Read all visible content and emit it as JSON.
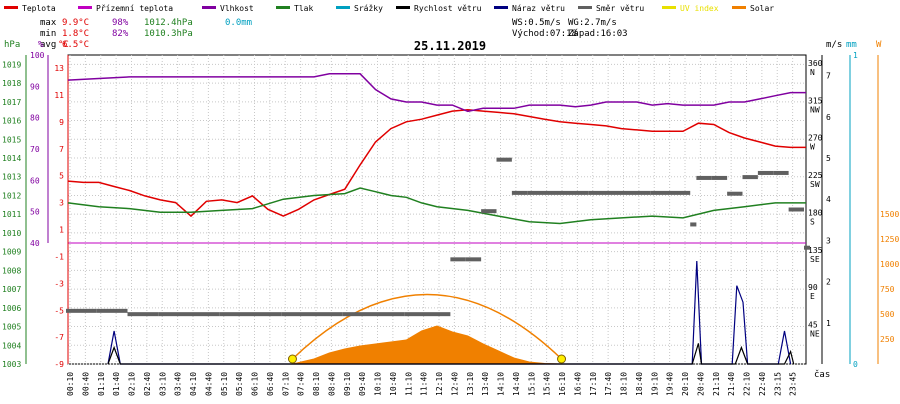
{
  "legend": [
    {
      "label": "Teplota",
      "color": "#e00000"
    },
    {
      "label": "Přízemní teplota",
      "color": "#c000c0"
    },
    {
      "label": "Vlhkost",
      "color": "#8000a0"
    },
    {
      "label": "Tlak",
      "color": "#208020"
    },
    {
      "label": "Srážky",
      "color": "#00a0c0"
    },
    {
      "label": "Rychlost větru",
      "color": "#000000"
    },
    {
      "label": "Náraz větru",
      "color": "#000080"
    },
    {
      "label": "Směr větru",
      "color": "#606060"
    },
    {
      "label": "UV index",
      "color": "#e8e000"
    },
    {
      "label": "Solar",
      "color": "#f08000"
    }
  ],
  "stats": {
    "max_label": "max",
    "max_temp": "9.9°C",
    "max_hum": "98%",
    "max_press": "1012.4hPa",
    "max_rain": "0.0mm",
    "min_label": "min",
    "min_temp": "1.8°C",
    "min_hum": "82%",
    "min_press": "1010.3hPa",
    "avg_label": "avg",
    "avg_temp": "6.5°C"
  },
  "wind": {
    "ws": "WS:0.5m/s",
    "wg": "WG:2.7m/s",
    "sunrise": "Východ:07:18",
    "sunset": "Západ:16:03"
  },
  "title": "25.11.2019",
  "axis_units": {
    "hpa": "hPa",
    "pct": "%",
    "degc": "°C",
    "ms": "m/s",
    "mm": "mm",
    "w": "W"
  },
  "time_label": "čas",
  "chart_data": {
    "type": "line",
    "title": "25.11.2019",
    "x_ticks": [
      "00:10",
      "00:40",
      "01:10",
      "01:40",
      "02:10",
      "02:40",
      "03:10",
      "03:40",
      "04:10",
      "04:40",
      "05:10",
      "05:40",
      "06:10",
      "06:40",
      "07:10",
      "07:40",
      "08:10",
      "08:40",
      "09:10",
      "09:40",
      "10:10",
      "10:40",
      "11:10",
      "11:40",
      "12:10",
      "12:40",
      "13:10",
      "13:40",
      "14:10",
      "14:40",
      "15:10",
      "15:40",
      "16:10",
      "16:40",
      "17:10",
      "17:40",
      "18:10",
      "18:40",
      "19:10",
      "19:40",
      "20:10",
      "20:40",
      "21:10",
      "21:40",
      "22:10",
      "22:40",
      "23:15",
      "23:45"
    ],
    "hpa_ticks": [
      "1019",
      "1018",
      "1017",
      "1016",
      "1015",
      "1014",
      "1013",
      "1012",
      "1011",
      "1010",
      "1009",
      "1008",
      "1007",
      "1006",
      "1005",
      "1004",
      "1003"
    ],
    "pct_ticks": [
      "100",
      "90",
      "80",
      "70",
      "60",
      "50",
      "40"
    ],
    "degc_ticks": [
      "13",
      "11",
      "9",
      "7",
      "5",
      "3",
      "1",
      "-1",
      "-3",
      "-5",
      "-7",
      "-9"
    ],
    "dir_ticks": [
      "360 N",
      "315 NW",
      "270 W",
      "225 SW",
      "180 S",
      "135 SE",
      "90 E",
      "45 NE"
    ],
    "ms_ticks": [
      "7",
      "6",
      "5",
      "4",
      "3",
      "2",
      "1"
    ],
    "mm_ticks": [
      "1",
      "0"
    ],
    "w_ticks": [
      "1500",
      "1250",
      "1000",
      "750",
      "500",
      "250"
    ],
    "x_hours": [
      0,
      24
    ],
    "series": [
      {
        "name": "Teplota",
        "unit": "°C",
        "color": "#e00000",
        "points": [
          [
            0,
            4.6
          ],
          [
            0.5,
            4.5
          ],
          [
            1,
            4.5
          ],
          [
            1.5,
            4.2
          ],
          [
            2,
            3.9
          ],
          [
            2.5,
            3.5
          ],
          [
            3,
            3.2
          ],
          [
            3.5,
            3.0
          ],
          [
            4,
            2.0
          ],
          [
            4.5,
            3.1
          ],
          [
            5,
            3.2
          ],
          [
            5.5,
            3.0
          ],
          [
            6,
            3.5
          ],
          [
            6.5,
            2.5
          ],
          [
            7,
            2.0
          ],
          [
            7.5,
            2.5
          ],
          [
            8,
            3.2
          ],
          [
            8.5,
            3.6
          ],
          [
            9,
            4.0
          ],
          [
            9.5,
            5.8
          ],
          [
            10,
            7.5
          ],
          [
            10.5,
            8.5
          ],
          [
            11,
            9.0
          ],
          [
            11.5,
            9.2
          ],
          [
            12,
            9.5
          ],
          [
            12.5,
            9.8
          ],
          [
            13,
            9.9
          ],
          [
            13.5,
            9.8
          ],
          [
            14,
            9.7
          ],
          [
            14.5,
            9.6
          ],
          [
            15,
            9.4
          ],
          [
            15.5,
            9.2
          ],
          [
            16,
            9.0
          ],
          [
            16.5,
            8.9
          ],
          [
            17,
            8.8
          ],
          [
            17.5,
            8.7
          ],
          [
            18,
            8.5
          ],
          [
            18.5,
            8.4
          ],
          [
            19,
            8.3
          ],
          [
            19.5,
            8.3
          ],
          [
            20,
            8.3
          ],
          [
            20.5,
            8.9
          ],
          [
            21,
            8.8
          ],
          [
            21.5,
            8.2
          ],
          [
            22,
            7.8
          ],
          [
            22.5,
            7.5
          ],
          [
            23,
            7.2
          ],
          [
            23.5,
            7.1
          ],
          [
            24,
            7.1
          ]
        ]
      },
      {
        "name": "Vlhkost",
        "unit": "%",
        "color": "#8000a0",
        "points": [
          [
            0,
            92
          ],
          [
            1,
            92.5
          ],
          [
            2,
            93
          ],
          [
            3,
            93
          ],
          [
            4,
            93
          ],
          [
            5,
            93
          ],
          [
            6,
            93
          ],
          [
            7,
            93
          ],
          [
            8,
            93
          ],
          [
            8.5,
            94
          ],
          [
            9.5,
            94
          ],
          [
            10,
            89
          ],
          [
            10.5,
            86
          ],
          [
            11,
            85
          ],
          [
            11.5,
            85
          ],
          [
            12,
            84
          ],
          [
            12.5,
            84
          ],
          [
            13,
            82
          ],
          [
            13.5,
            83
          ],
          [
            14,
            83
          ],
          [
            14.5,
            83
          ],
          [
            15,
            84
          ],
          [
            15.5,
            84
          ],
          [
            16,
            84
          ],
          [
            16.5,
            83.5
          ],
          [
            17,
            84
          ],
          [
            17.5,
            85
          ],
          [
            18,
            85
          ],
          [
            18.5,
            85
          ],
          [
            19,
            84
          ],
          [
            19.5,
            84.5
          ],
          [
            20,
            84
          ],
          [
            20.5,
            84
          ],
          [
            21,
            84
          ],
          [
            21.5,
            85
          ],
          [
            22,
            85
          ],
          [
            22.5,
            86
          ],
          [
            23,
            87
          ],
          [
            23.5,
            88
          ],
          [
            24,
            88
          ]
        ]
      },
      {
        "name": "Tlak",
        "unit": "hPa",
        "color": "#208020",
        "points": [
          [
            0,
            1011.6
          ],
          [
            1,
            1011.4
          ],
          [
            2,
            1011.3
          ],
          [
            3,
            1011.1
          ],
          [
            4,
            1011.1
          ],
          [
            5,
            1011.2
          ],
          [
            6,
            1011.3
          ],
          [
            7,
            1011.8
          ],
          [
            8,
            1012.0
          ],
          [
            9,
            1012.1
          ],
          [
            9.5,
            1012.4
          ],
          [
            10,
            1012.2
          ],
          [
            10.5,
            1012.0
          ],
          [
            11,
            1011.9
          ],
          [
            11.5,
            1011.6
          ],
          [
            12,
            1011.4
          ],
          [
            13,
            1011.2
          ],
          [
            14,
            1010.9
          ],
          [
            15,
            1010.6
          ],
          [
            16,
            1010.5
          ],
          [
            17,
            1010.7
          ],
          [
            18,
            1010.8
          ],
          [
            19,
            1010.9
          ],
          [
            20,
            1010.8
          ],
          [
            21,
            1011.2
          ],
          [
            22,
            1011.4
          ],
          [
            23,
            1011.6
          ],
          [
            24,
            1011.6
          ]
        ]
      },
      {
        "name": "Solar",
        "unit": "W",
        "color": "#f08000",
        "points": [
          [
            7.3,
            0
          ],
          [
            8,
            50
          ],
          [
            8.5,
            110
          ],
          [
            9,
            150
          ],
          [
            9.5,
            180
          ],
          [
            10,
            200
          ],
          [
            10.5,
            220
          ],
          [
            11,
            240
          ],
          [
            11.5,
            330
          ],
          [
            12,
            380
          ],
          [
            12.5,
            320
          ],
          [
            13,
            280
          ],
          [
            13.5,
            200
          ],
          [
            14,
            130
          ],
          [
            14.5,
            60
          ],
          [
            15,
            20
          ],
          [
            15.5,
            5
          ],
          [
            16.05,
            0
          ]
        ]
      },
      {
        "name": "Náraz větru",
        "unit": "m/s",
        "color": "#000080",
        "points": [
          [
            1.3,
            0
          ],
          [
            1.5,
            0.8
          ],
          [
            1.7,
            0
          ],
          [
            20.3,
            0
          ],
          [
            20.45,
            2.5
          ],
          [
            20.6,
            0
          ],
          [
            21.6,
            0
          ],
          [
            21.75,
            1.9
          ],
          [
            21.95,
            1.5
          ],
          [
            22.1,
            0
          ],
          [
            23.1,
            0
          ],
          [
            23.3,
            0.8
          ],
          [
            23.5,
            0
          ]
        ]
      },
      {
        "name": "Rychlost větru",
        "unit": "m/s",
        "color": "#000000",
        "points": [
          [
            1.3,
            0
          ],
          [
            1.5,
            0.4
          ],
          [
            1.7,
            0
          ],
          [
            20.3,
            0
          ],
          [
            20.5,
            0.5
          ],
          [
            20.6,
            0
          ],
          [
            21.7,
            0
          ],
          [
            21.9,
            0.4
          ],
          [
            22.1,
            0
          ],
          [
            23.3,
            0
          ],
          [
            23.5,
            0.3
          ],
          [
            23.6,
            0
          ]
        ]
      },
      {
        "name": "Směr větru",
        "unit": "°",
        "color": "#606060",
        "points": [
          [
            0,
            64
          ],
          [
            1,
            64
          ],
          [
            2,
            60
          ],
          [
            3,
            60
          ],
          [
            4,
            60
          ],
          [
            5,
            60
          ],
          [
            6,
            60
          ],
          [
            7,
            60
          ],
          [
            8,
            60
          ],
          [
            9,
            60
          ],
          [
            10,
            60
          ],
          [
            11,
            60
          ],
          [
            12,
            60
          ],
          [
            12.5,
            126
          ],
          [
            13,
            126
          ],
          [
            13.5,
            184
          ],
          [
            14,
            246
          ],
          [
            14.5,
            206
          ],
          [
            15,
            206
          ],
          [
            16,
            206
          ],
          [
            17,
            206
          ],
          [
            18,
            206
          ],
          [
            19,
            206
          ],
          [
            20,
            206
          ],
          [
            20.3,
            168
          ],
          [
            20.5,
            224
          ],
          [
            21,
            224
          ],
          [
            21.5,
            205
          ],
          [
            22,
            225
          ],
          [
            22.5,
            230
          ],
          [
            23,
            230
          ],
          [
            23.5,
            186
          ],
          [
            24,
            140
          ]
        ]
      }
    ],
    "sun_markers": [
      7.3,
      16.05
    ]
  }
}
